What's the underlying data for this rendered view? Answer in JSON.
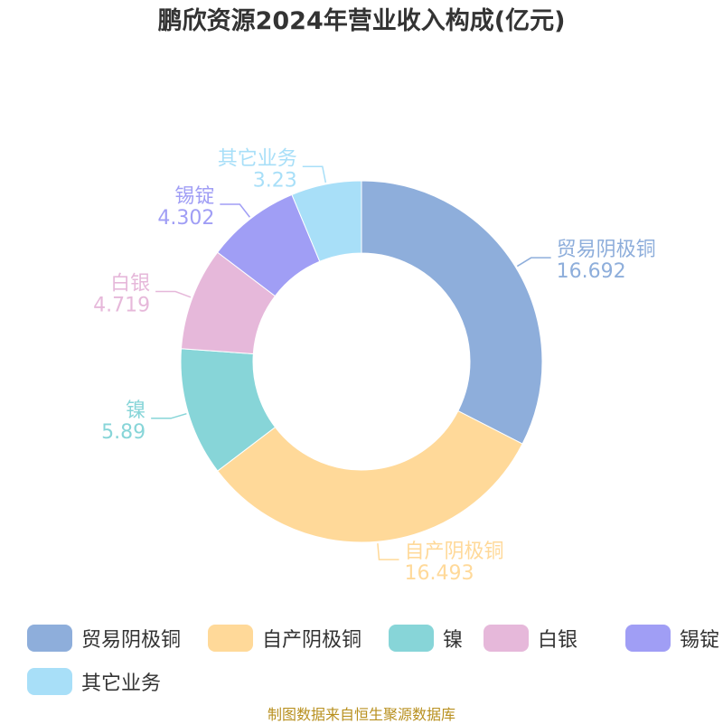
{
  "title": "鹏欣资源2024年营业收入构成(亿元)",
  "source": "制图数据来自恒生聚源数据库",
  "chart_data": {
    "type": "pie",
    "variant": "donut",
    "title": "鹏欣资源2024年营业收入构成(亿元)",
    "unit": "亿元",
    "legend_position": "bottom",
    "categories": [
      "贸易阴极铜",
      "自产阴极铜",
      "镍",
      "白银",
      "锡锭",
      "其它业务"
    ],
    "values": [
      16.692,
      16.493,
      5.89,
      4.719,
      4.302,
      3.23
    ],
    "value_labels": [
      "16.692",
      "16.493",
      "5.89",
      "4.719",
      "4.302",
      "3.23"
    ],
    "colors": [
      "#8eaedb",
      "#ffd999",
      "#87d5d8",
      "#e6b8da",
      "#a09ef5",
      "#a8dff8"
    ]
  }
}
